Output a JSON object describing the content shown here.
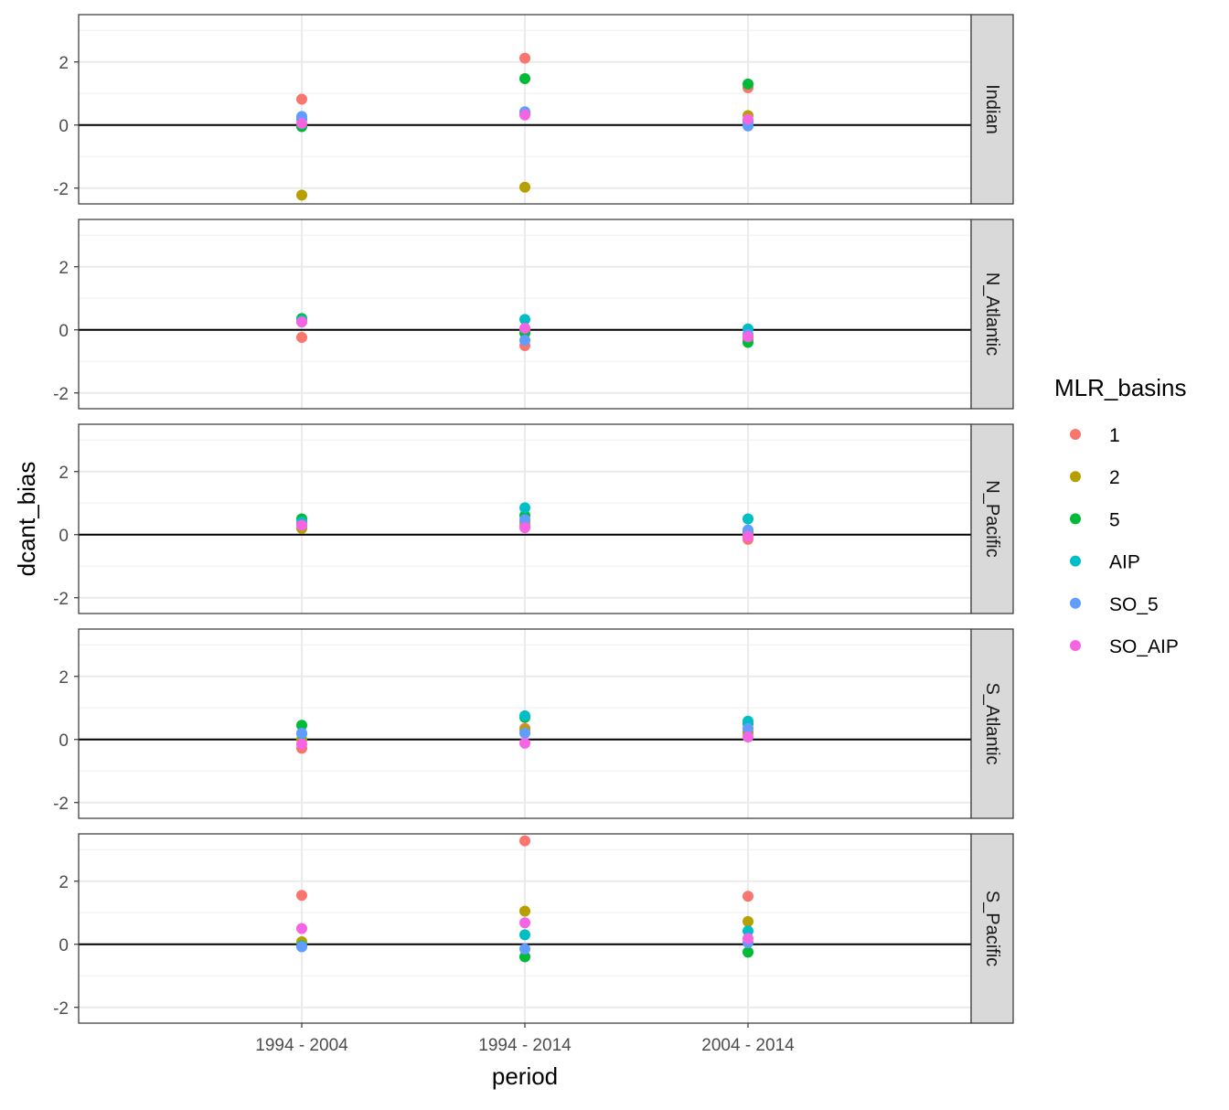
{
  "chart_data": {
    "type": "scatter",
    "xlabel": "period",
    "ylabel": "dcant_bias",
    "categories": [
      "1994 - 2004",
      "1994 - 2014",
      "2004 - 2014"
    ],
    "ylim": [
      -2.5,
      3.5
    ],
    "yticks": [
      -2,
      0,
      2
    ],
    "ytick_labels": [
      "-2",
      "0",
      "2"
    ],
    "hline": 0,
    "grid": true,
    "facet_panels": [
      "Indian",
      "N_Atlantic",
      "N_Pacific",
      "S_Atlantic",
      "S_Pacific"
    ],
    "legend": {
      "title": "MLR_basins",
      "placement": "right",
      "entries": [
        "1",
        "2",
        "5",
        "AIP",
        "SO_5",
        "SO_AIP"
      ]
    },
    "series": [
      {
        "name": "1",
        "color": "#F8766D",
        "values": {
          "Indian": [
            0.82,
            2.12,
            1.18
          ],
          "N_Atlantic": [
            -0.24,
            -0.5,
            -0.3
          ],
          "N_Pacific": [
            0.3,
            0.3,
            -0.15
          ],
          "S_Atlantic": [
            -0.28,
            0.35,
            0.25
          ],
          "S_Pacific": [
            1.55,
            3.28,
            1.52
          ]
        }
      },
      {
        "name": "2",
        "color": "#B79F00",
        "values": {
          "Indian": [
            -2.22,
            -1.97,
            0.3
          ],
          "N_Atlantic": [
            0.3,
            0.0,
            -0.2
          ],
          "N_Pacific": [
            0.2,
            0.4,
            0.0
          ],
          "S_Atlantic": [
            0.0,
            0.3,
            0.2
          ],
          "S_Pacific": [
            0.08,
            1.05,
            0.72
          ]
        }
      },
      {
        "name": "5",
        "color": "#00BA38",
        "values": {
          "Indian": [
            -0.05,
            1.47,
            1.3
          ],
          "N_Atlantic": [
            0.36,
            -0.1,
            -0.4
          ],
          "N_Pacific": [
            0.5,
            0.6,
            0.1
          ],
          "S_Atlantic": [
            0.45,
            0.7,
            0.5
          ],
          "S_Pacific": [
            -0.05,
            -0.4,
            -0.25
          ]
        }
      },
      {
        "name": "AIP",
        "color": "#00BFC4",
        "values": {
          "Indian": [
            0.18,
            0.35,
            0.1
          ],
          "N_Atlantic": [
            0.3,
            0.33,
            0.03
          ],
          "N_Pacific": [
            0.4,
            0.85,
            0.5
          ],
          "S_Atlantic": [
            0.18,
            0.75,
            0.58
          ],
          "S_Pacific": [
            -0.06,
            0.3,
            0.42
          ]
        }
      },
      {
        "name": "SO_5",
        "color": "#619CFF",
        "values": {
          "Indian": [
            0.27,
            0.42,
            -0.03
          ],
          "N_Atlantic": [
            0.25,
            -0.33,
            -0.15
          ],
          "N_Pacific": [
            0.3,
            0.48,
            0.15
          ],
          "S_Atlantic": [
            0.2,
            0.2,
            0.35
          ],
          "S_Pacific": [
            -0.08,
            -0.15,
            0.05
          ]
        }
      },
      {
        "name": "SO_AIP",
        "color": "#F564E3",
        "values": {
          "Indian": [
            0.05,
            0.32,
            0.18
          ],
          "N_Atlantic": [
            0.25,
            0.05,
            -0.22
          ],
          "N_Pacific": [
            0.3,
            0.22,
            -0.05
          ],
          "S_Atlantic": [
            -0.15,
            -0.12,
            0.08
          ],
          "S_Pacific": [
            0.5,
            0.68,
            0.18
          ]
        }
      }
    ]
  }
}
